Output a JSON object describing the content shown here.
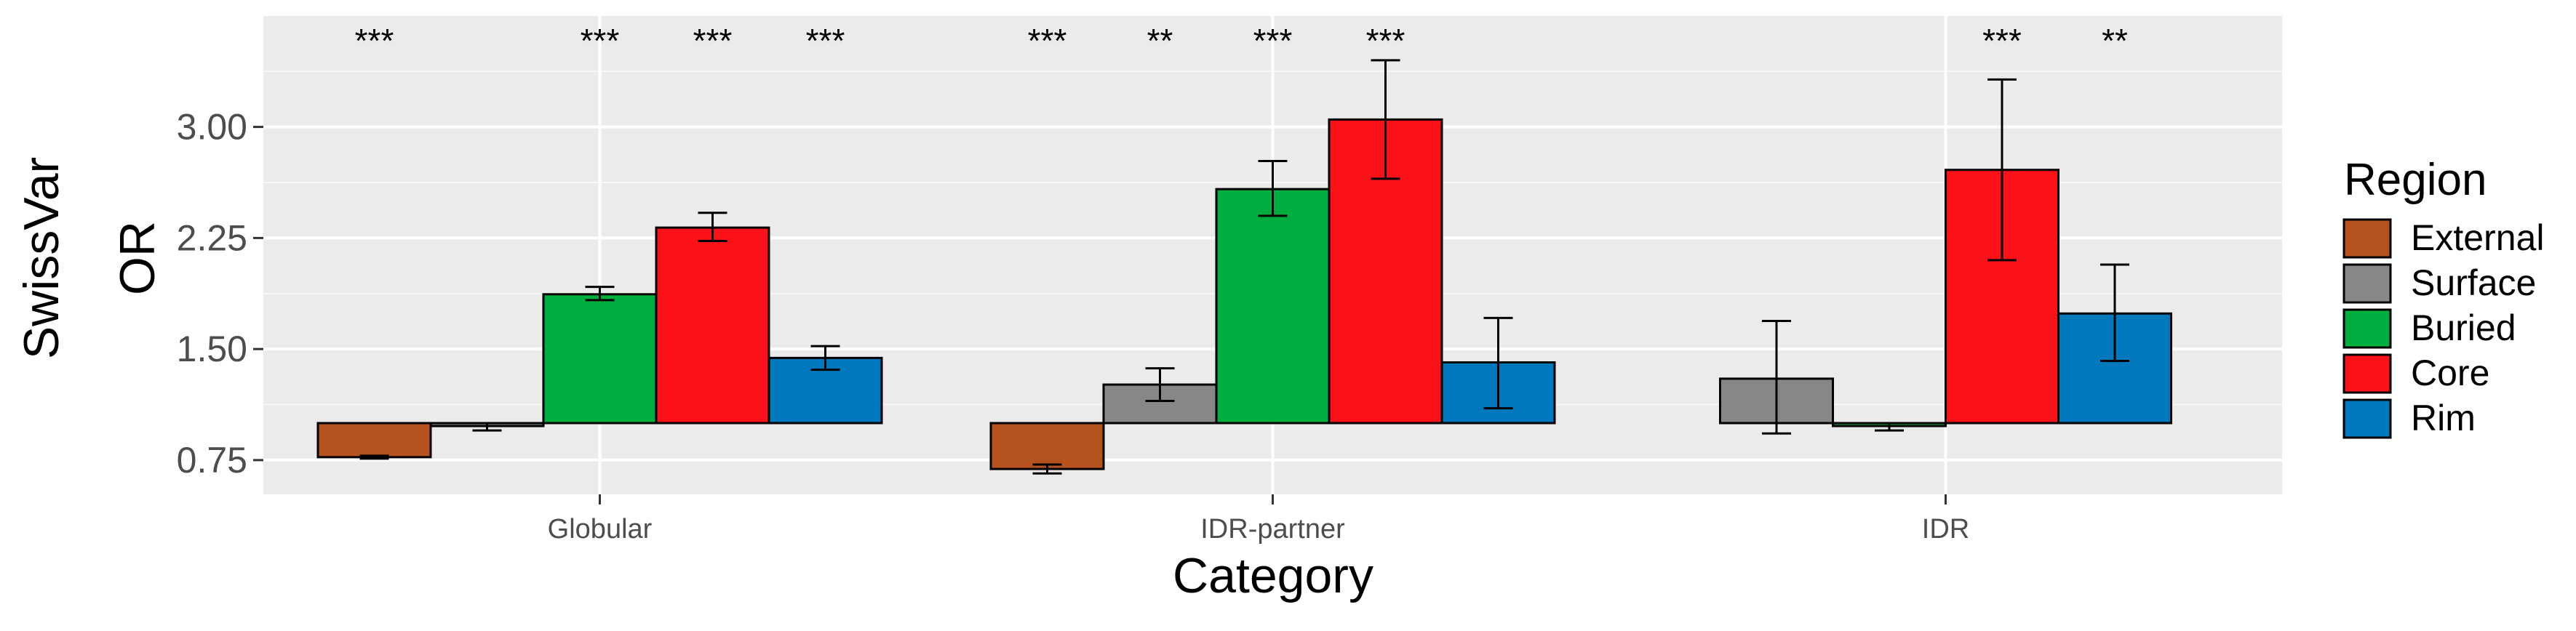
{
  "chart_data": {
    "type": "bar",
    "title": "",
    "xlabel": "Category",
    "ylabel_lines": [
      "SwissVar",
      "OR"
    ],
    "categories": [
      "Globular",
      "IDR-partner",
      "IDR"
    ],
    "baseline": 1.0,
    "ylim": [
      0.5,
      3.45
    ],
    "yticks": [
      0.75,
      1.5,
      2.25,
      3.0
    ],
    "ytick_labels": [
      "0.75",
      "1.50",
      "2.25",
      "3.00"
    ],
    "grid": true,
    "legend": {
      "title": "Region",
      "position": "right"
    },
    "series": [
      {
        "name": "External",
        "color": "#b5521e",
        "values": [
          0.77,
          0.69,
          null
        ],
        "err_low": [
          0.76,
          0.66,
          null
        ],
        "err_high": [
          0.78,
          0.72,
          null
        ],
        "significance": [
          "***",
          "***",
          ""
        ]
      },
      {
        "name": "Surface",
        "color": "#878787",
        "values": [
          0.98,
          1.26,
          1.3
        ],
        "err_low": [
          0.95,
          1.15,
          0.93
        ],
        "err_high": [
          1.0,
          1.37,
          1.69
        ],
        "significance": [
          "",
          "**",
          ""
        ]
      },
      {
        "name": "Buried",
        "color": "#00ad3f",
        "values": [
          1.87,
          2.58,
          0.98
        ],
        "err_low": [
          1.83,
          2.4,
          0.95
        ],
        "err_high": [
          1.92,
          2.77,
          1.0
        ],
        "significance": [
          "***",
          "***",
          ""
        ]
      },
      {
        "name": "Core",
        "color": "#fb1219",
        "values": [
          2.32,
          3.05,
          2.71
        ],
        "err_low": [
          2.23,
          2.65,
          2.1
        ],
        "err_high": [
          2.42,
          3.45,
          3.32
        ],
        "significance": [
          "***",
          "***",
          "***"
        ]
      },
      {
        "name": "Rim",
        "color": "#0078bd",
        "values": [
          1.44,
          1.41,
          1.74
        ],
        "err_low": [
          1.36,
          1.1,
          1.42
        ],
        "err_high": [
          1.52,
          1.71,
          2.07
        ],
        "significance": [
          "***",
          "",
          "**"
        ]
      }
    ]
  }
}
